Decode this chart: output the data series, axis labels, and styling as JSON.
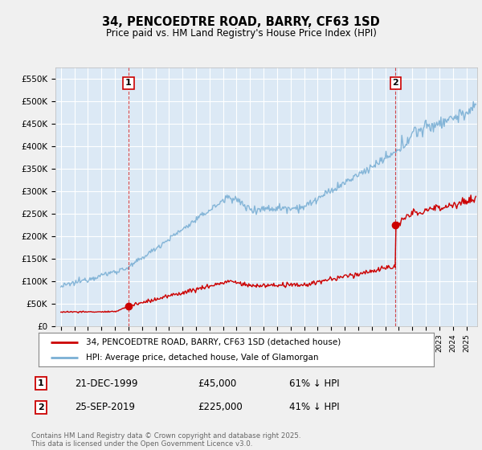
{
  "title": "34, PENCOEDTRE ROAD, BARRY, CF63 1SD",
  "subtitle": "Price paid vs. HM Land Registry's House Price Index (HPI)",
  "ylabel_ticks": [
    "£0",
    "£50K",
    "£100K",
    "£150K",
    "£200K",
    "£250K",
    "£300K",
    "£350K",
    "£400K",
    "£450K",
    "£500K",
    "£550K"
  ],
  "ytick_vals": [
    0,
    50000,
    100000,
    150000,
    200000,
    250000,
    300000,
    350000,
    400000,
    450000,
    500000,
    550000
  ],
  "ylim": [
    0,
    575000
  ],
  "xlim_start": 1994.6,
  "xlim_end": 2025.8,
  "transaction1": {
    "date_num": 2000.0,
    "price": 45000,
    "label": "1"
  },
  "transaction2": {
    "date_num": 2019.75,
    "price": 225000,
    "label": "2"
  },
  "legend_house": "34, PENCOEDTRE ROAD, BARRY, CF63 1SD (detached house)",
  "legend_hpi": "HPI: Average price, detached house, Vale of Glamorgan",
  "table_rows": [
    {
      "num": "1",
      "date": "21-DEC-1999",
      "price": "£45,000",
      "note": "61% ↓ HPI"
    },
    {
      "num": "2",
      "date": "25-SEP-2019",
      "price": "£225,000",
      "note": "41% ↓ HPI"
    }
  ],
  "footer": "Contains HM Land Registry data © Crown copyright and database right 2025.\nThis data is licensed under the Open Government Licence v3.0.",
  "house_color": "#cc0000",
  "hpi_color": "#7aafd4",
  "background_color": "#f0f0f0",
  "plot_bg_color": "#dce9f5"
}
